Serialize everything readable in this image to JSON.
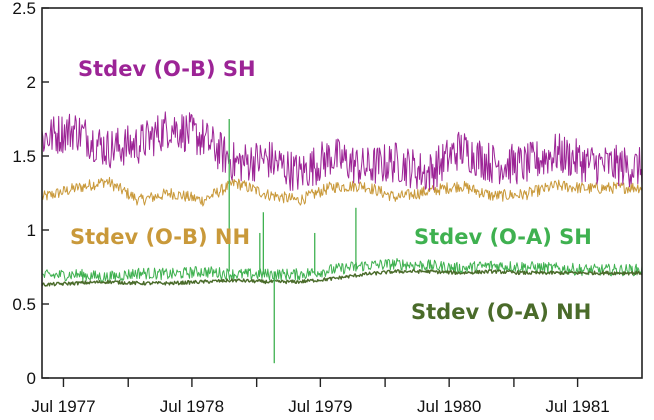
{
  "chart_data": {
    "type": "line",
    "title": "",
    "xlabel": "",
    "ylabel": "",
    "ylim": [
      0,
      2.5
    ],
    "yticks": [
      0,
      0.5,
      1,
      1.5,
      2,
      2.5
    ],
    "ytick_labels": [
      "0",
      "0.5",
      "1",
      "1.5",
      "2",
      "2.5"
    ],
    "xlim": [
      "1977-05-01",
      "1981-12-31"
    ],
    "xticks": [
      "1977-07-01",
      "1978-07-01",
      "1979-07-01",
      "1980-07-01",
      "1981-07-01"
    ],
    "xtick_labels": [
      "Jul 1977",
      "Jul 1978",
      "Jul 1979",
      "Jul 1980",
      "Jul 1981"
    ],
    "minor_xticks": [
      "1978-01-01",
      "1979-01-01",
      "1980-01-01",
      "1981-01-01"
    ],
    "grid": false,
    "legend": "inline labels",
    "series": [
      {
        "name": "Stdev (O-B) SH",
        "color": "#9c2496",
        "x": [
          "1977-05-01",
          "1977-08-01",
          "1977-11-01",
          "1978-02-01",
          "1978-05-01",
          "1978-08-01",
          "1978-11-01",
          "1979-02-01",
          "1979-05-01",
          "1979-08-01",
          "1979-11-01",
          "1980-02-01",
          "1980-05-01",
          "1980-08-01",
          "1980-11-01",
          "1981-02-01",
          "1981-05-01",
          "1981-08-01",
          "1981-12-31"
        ],
        "values": [
          1.62,
          1.68,
          1.55,
          1.58,
          1.7,
          1.62,
          1.45,
          1.48,
          1.38,
          1.5,
          1.42,
          1.46,
          1.38,
          1.55,
          1.45,
          1.44,
          1.52,
          1.45,
          1.42
        ],
        "noise": 0.14
      },
      {
        "name": "Stdev (O-B) NH",
        "color": "#c9993a",
        "x": [
          "1977-05-01",
          "1977-08-01",
          "1977-11-01",
          "1978-02-01",
          "1978-05-01",
          "1978-08-01",
          "1978-11-01",
          "1979-02-01",
          "1979-05-01",
          "1979-08-01",
          "1979-11-01",
          "1980-02-01",
          "1980-05-01",
          "1980-08-01",
          "1980-11-01",
          "1981-02-01",
          "1981-05-01",
          "1981-08-01",
          "1981-12-31"
        ],
        "values": [
          1.22,
          1.28,
          1.33,
          1.2,
          1.25,
          1.2,
          1.32,
          1.24,
          1.2,
          1.29,
          1.3,
          1.22,
          1.26,
          1.3,
          1.23,
          1.24,
          1.3,
          1.28,
          1.29
        ],
        "noise": 0.04
      },
      {
        "name": "Stdev (O-A) SH",
        "color": "#3fb150",
        "x": [
          "1977-05-01",
          "1977-08-01",
          "1977-11-01",
          "1978-02-01",
          "1978-05-01",
          "1978-08-01",
          "1978-11-01",
          "1979-02-01",
          "1979-05-01",
          "1979-08-01",
          "1979-11-01",
          "1980-02-01",
          "1980-05-01",
          "1980-08-01",
          "1980-11-01",
          "1981-02-01",
          "1981-05-01",
          "1981-08-01",
          "1981-12-31"
        ],
        "values": [
          0.69,
          0.7,
          0.68,
          0.71,
          0.7,
          0.72,
          0.7,
          0.7,
          0.7,
          0.73,
          0.76,
          0.77,
          0.76,
          0.74,
          0.76,
          0.75,
          0.74,
          0.73,
          0.73
        ],
        "noise": 0.04
      },
      {
        "name": "Stdev (O-A) NH",
        "color": "#4a6b2a",
        "x": [
          "1977-05-01",
          "1977-08-01",
          "1977-11-01",
          "1978-02-01",
          "1978-05-01",
          "1978-08-01",
          "1978-11-01",
          "1979-02-01",
          "1979-05-01",
          "1979-08-01",
          "1979-11-01",
          "1980-02-01",
          "1980-05-01",
          "1980-08-01",
          "1980-11-01",
          "1981-02-01",
          "1981-05-01",
          "1981-08-01",
          "1981-12-31"
        ],
        "values": [
          0.63,
          0.64,
          0.65,
          0.64,
          0.64,
          0.65,
          0.66,
          0.65,
          0.65,
          0.67,
          0.7,
          0.72,
          0.72,
          0.71,
          0.72,
          0.71,
          0.71,
          0.71,
          0.71
        ],
        "noise": 0.012
      }
    ],
    "spikes": [
      {
        "x": "1978-10-15",
        "low": 0.72,
        "high": 1.75,
        "color": "#3fb150"
      },
      {
        "x": "1979-01-10",
        "low": 0.7,
        "high": 0.98,
        "color": "#3fb150"
      },
      {
        "x": "1979-01-20",
        "low": 0.7,
        "high": 1.12,
        "color": "#3fb150"
      },
      {
        "x": "1979-02-20",
        "low": 0.1,
        "high": 0.72,
        "color": "#3fb150"
      },
      {
        "x": "1979-06-15",
        "low": 0.7,
        "high": 0.98,
        "color": "#3fb150"
      },
      {
        "x": "1979-10-10",
        "low": 0.72,
        "high": 1.15,
        "color": "#3fb150"
      }
    ],
    "series_labels": [
      {
        "text": "Stdev (O-B) SH",
        "color": "#9c2496"
      },
      {
        "text": "Stdev (O-B) NH",
        "color": "#c9993a"
      },
      {
        "text": "Stdev (O-A) SH",
        "color": "#3fb150"
      },
      {
        "text": "Stdev (O-A) NH",
        "color": "#4a6b2a"
      }
    ]
  }
}
